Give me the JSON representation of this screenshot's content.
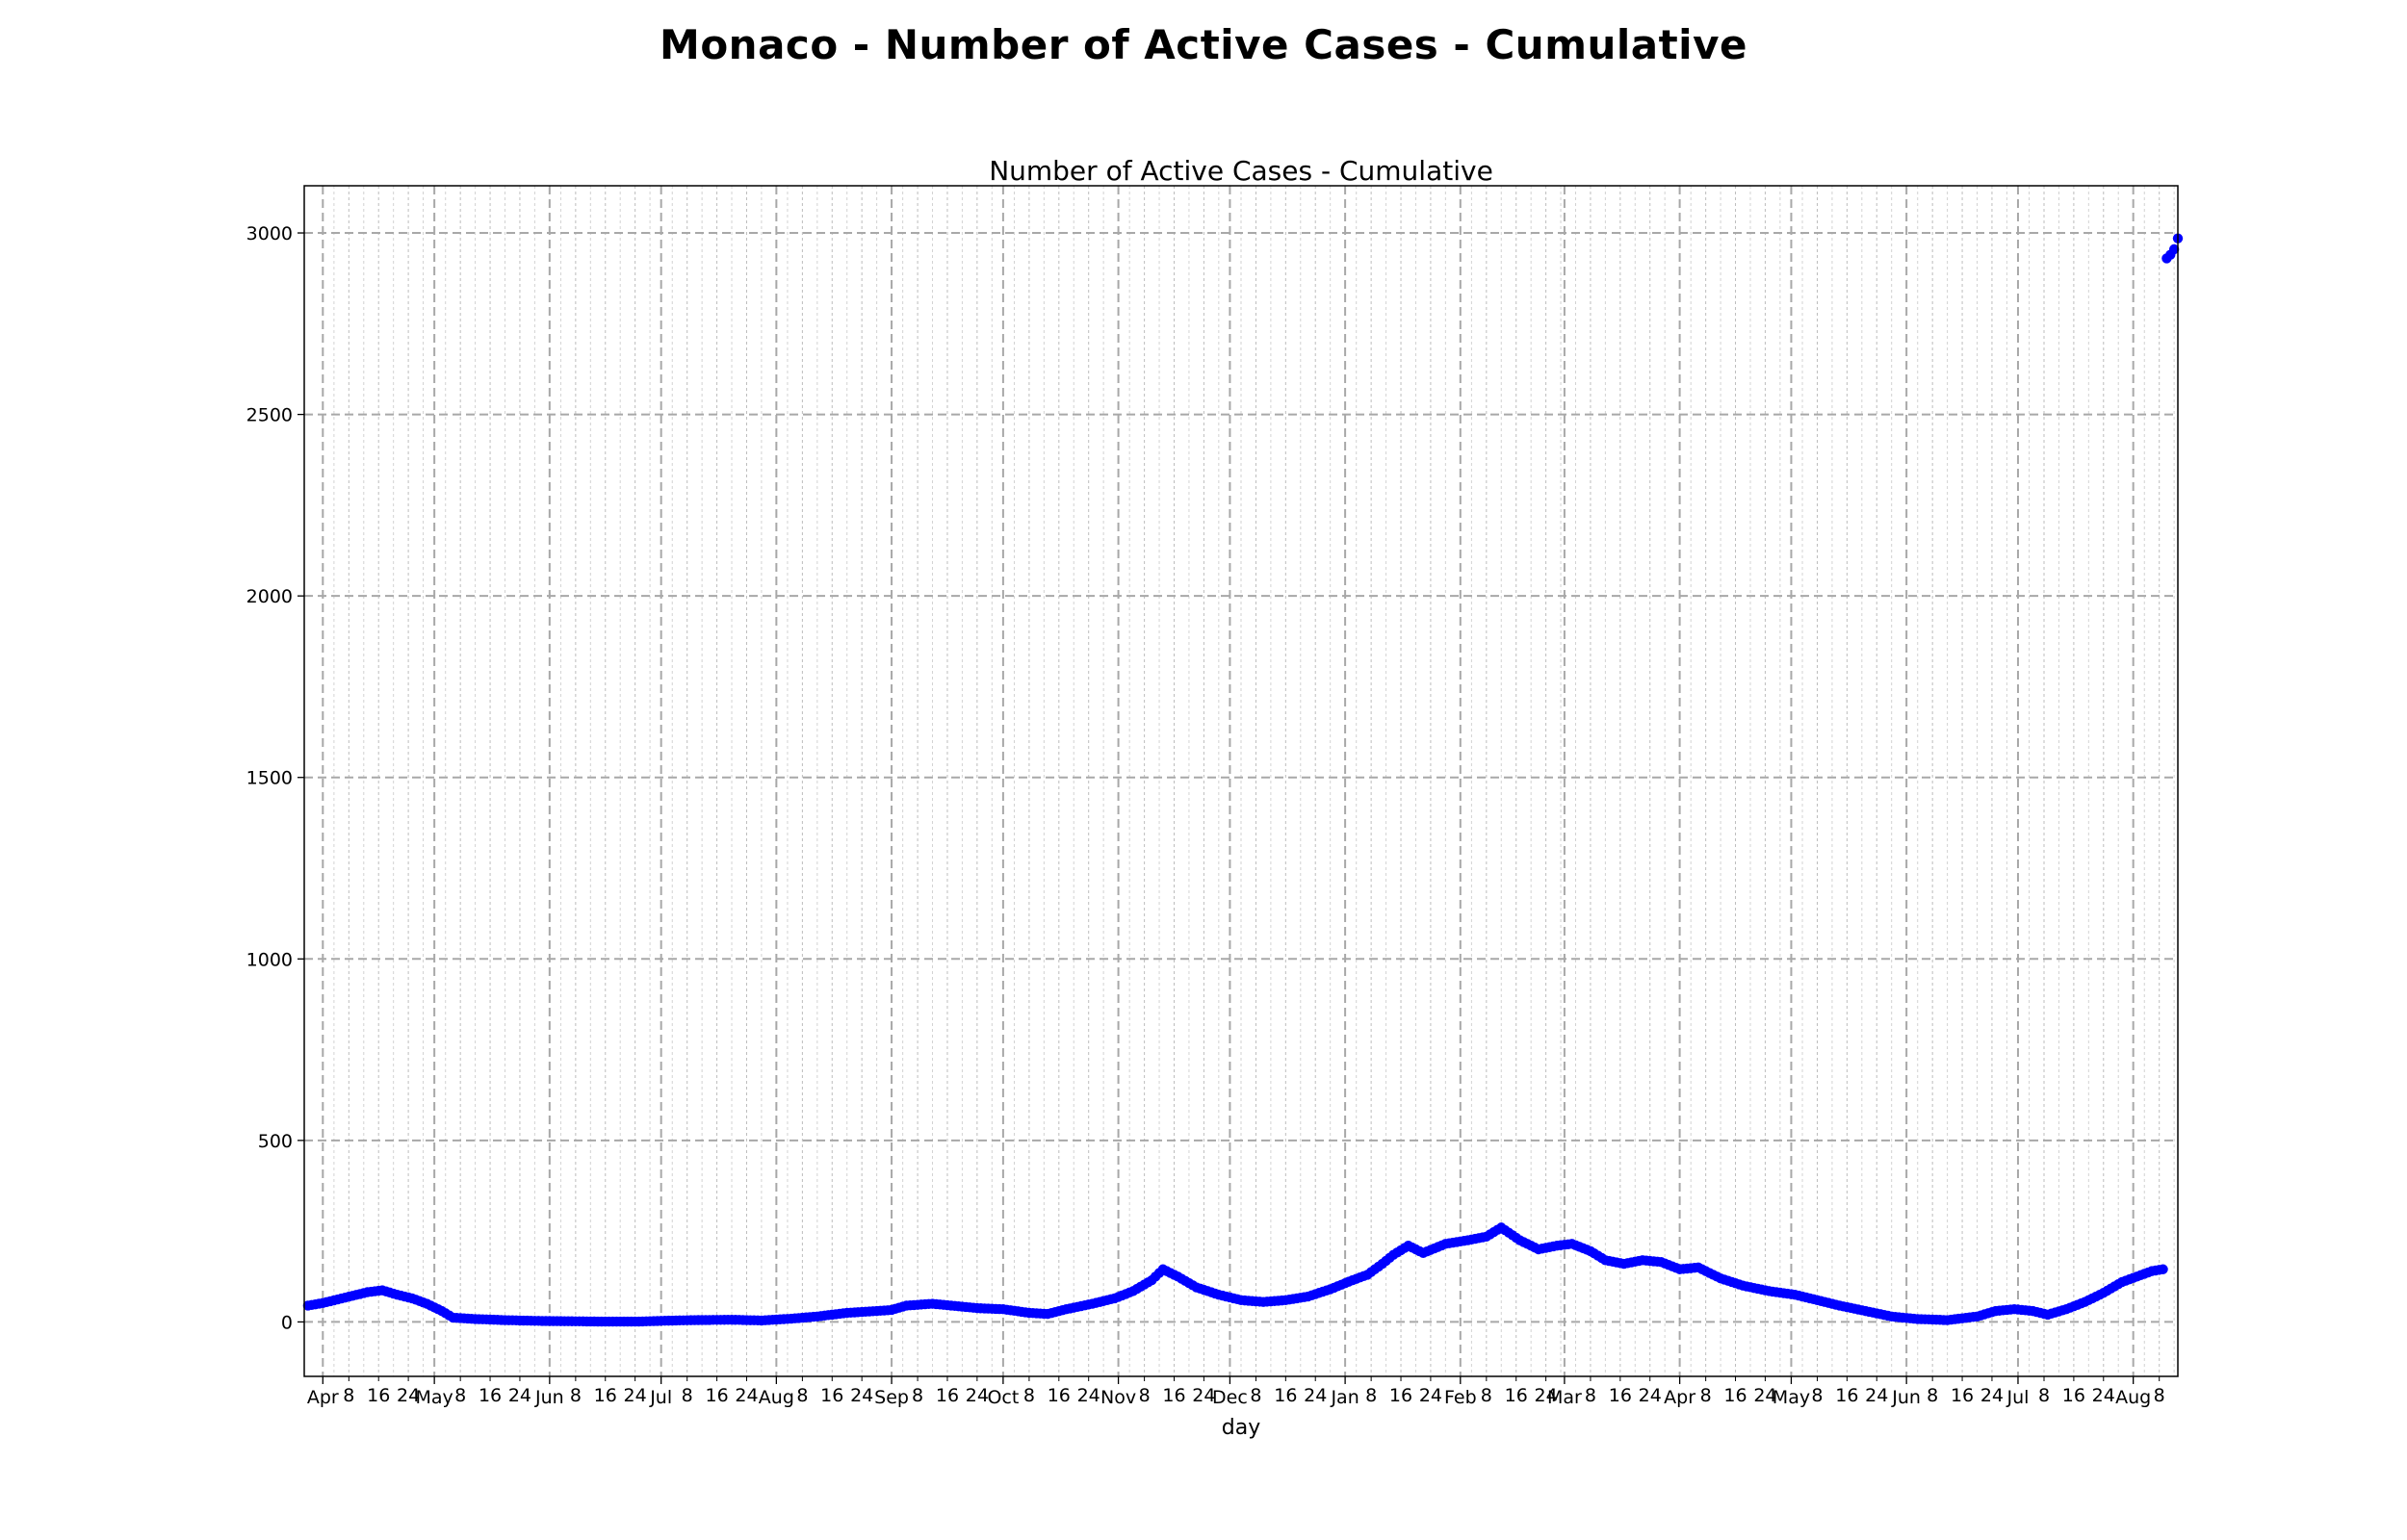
{
  "chart_data": {
    "type": "scatter",
    "suptitle": "Monaco - Number of Active Cases - Cumulative",
    "title": "Number of Active Cases - Cumulative",
    "xlabel": "day",
    "ylabel": "",
    "ylim": [
      -150,
      3130
    ],
    "yticks": [
      0,
      500,
      1000,
      1500,
      2000,
      2500,
      3000
    ],
    "xlim": [
      "2020-03-27",
      "2021-08-13"
    ],
    "grid": true,
    "legend": "none",
    "marker_color": "#0000ff",
    "month_ticks": [
      {
        "date": "2020-04-01",
        "label": "Apr"
      },
      {
        "date": "2020-05-01",
        "label": "May"
      },
      {
        "date": "2020-06-01",
        "label": "Jun"
      },
      {
        "date": "2020-07-01",
        "label": "Jul"
      },
      {
        "date": "2020-08-01",
        "label": "Aug"
      },
      {
        "date": "2020-09-01",
        "label": "Sep"
      },
      {
        "date": "2020-10-01",
        "label": "Oct"
      },
      {
        "date": "2020-11-01",
        "label": "Nov"
      },
      {
        "date": "2020-12-01",
        "label": "Dec"
      },
      {
        "date": "2021-01-01",
        "label": "Jan"
      },
      {
        "date": "2021-02-01",
        "label": "Feb"
      },
      {
        "date": "2021-03-01",
        "label": "Mar"
      },
      {
        "date": "2021-04-01",
        "label": "Apr"
      },
      {
        "date": "2021-05-01",
        "label": "May"
      },
      {
        "date": "2021-06-01",
        "label": "Jun"
      },
      {
        "date": "2021-07-01",
        "label": "Jul"
      },
      {
        "date": "2021-08-01",
        "label": "Aug"
      }
    ],
    "day_tick_labels": [
      "8",
      "16",
      "24"
    ],
    "series": [
      {
        "points": [
          [
            "2020-03-28",
            45
          ],
          [
            "2020-04-01",
            52
          ],
          [
            "2020-04-05",
            62
          ],
          [
            "2020-04-09",
            72
          ],
          [
            "2020-04-13",
            82
          ],
          [
            "2020-04-17",
            87
          ],
          [
            "2020-04-21",
            75
          ],
          [
            "2020-04-25",
            65
          ],
          [
            "2020-04-29",
            50
          ],
          [
            "2020-05-03",
            30
          ],
          [
            "2020-05-06",
            12
          ],
          [
            "2020-05-12",
            8
          ],
          [
            "2020-05-20",
            5
          ],
          [
            "2020-05-28",
            3
          ],
          [
            "2020-06-05",
            2
          ],
          [
            "2020-06-15",
            1
          ],
          [
            "2020-06-25",
            1
          ],
          [
            "2020-07-01",
            3
          ],
          [
            "2020-07-10",
            5
          ],
          [
            "2020-07-20",
            6
          ],
          [
            "2020-07-28",
            4
          ],
          [
            "2020-08-05",
            9
          ],
          [
            "2020-08-12",
            15
          ],
          [
            "2020-08-20",
            25
          ],
          [
            "2020-08-28",
            30
          ],
          [
            "2020-09-01",
            33
          ],
          [
            "2020-09-05",
            45
          ],
          [
            "2020-09-12",
            50
          ],
          [
            "2020-09-17",
            45
          ],
          [
            "2020-09-24",
            38
          ],
          [
            "2020-10-01",
            35
          ],
          [
            "2020-10-08",
            25
          ],
          [
            "2020-10-13",
            22
          ],
          [
            "2020-10-18",
            35
          ],
          [
            "2020-10-25",
            50
          ],
          [
            "2020-10-31",
            65
          ],
          [
            "2020-11-05",
            85
          ],
          [
            "2020-11-10",
            115
          ],
          [
            "2020-11-13",
            145
          ],
          [
            "2020-11-17",
            125
          ],
          [
            "2020-11-22",
            95
          ],
          [
            "2020-11-28",
            75
          ],
          [
            "2020-12-04",
            60
          ],
          [
            "2020-12-10",
            55
          ],
          [
            "2020-12-16",
            60
          ],
          [
            "2020-12-22",
            70
          ],
          [
            "2020-12-28",
            90
          ],
          [
            "2021-01-03",
            115
          ],
          [
            "2021-01-07",
            130
          ],
          [
            "2021-01-11",
            160
          ],
          [
            "2021-01-14",
            185
          ],
          [
            "2021-01-18",
            210
          ],
          [
            "2021-01-22",
            190
          ],
          [
            "2021-01-28",
            215
          ],
          [
            "2021-02-03",
            225
          ],
          [
            "2021-02-08",
            235
          ],
          [
            "2021-02-12",
            260
          ],
          [
            "2021-02-17",
            225
          ],
          [
            "2021-02-22",
            200
          ],
          [
            "2021-02-27",
            210
          ],
          [
            "2021-03-03",
            215
          ],
          [
            "2021-03-08",
            195
          ],
          [
            "2021-03-12",
            170
          ],
          [
            "2021-03-17",
            160
          ],
          [
            "2021-03-22",
            170
          ],
          [
            "2021-03-27",
            165
          ],
          [
            "2021-04-01",
            145
          ],
          [
            "2021-04-06",
            150
          ],
          [
            "2021-04-12",
            120
          ],
          [
            "2021-04-18",
            100
          ],
          [
            "2021-04-25",
            85
          ],
          [
            "2021-05-02",
            75
          ],
          [
            "2021-05-08",
            60
          ],
          [
            "2021-05-14",
            45
          ],
          [
            "2021-05-21",
            30
          ],
          [
            "2021-05-28",
            15
          ],
          [
            "2021-06-04",
            8
          ],
          [
            "2021-06-12",
            5
          ],
          [
            "2021-06-20",
            15
          ],
          [
            "2021-06-25",
            30
          ],
          [
            "2021-06-30",
            35
          ],
          [
            "2021-07-05",
            30
          ],
          [
            "2021-07-09",
            20
          ],
          [
            "2021-07-14",
            35
          ],
          [
            "2021-07-19",
            55
          ],
          [
            "2021-07-24",
            80
          ],
          [
            "2021-07-29",
            110
          ],
          [
            "2021-08-02",
            125
          ],
          [
            "2021-08-06",
            140
          ],
          [
            "2021-08-09",
            145
          ],
          [
            "2021-08-10",
            2930
          ],
          [
            "2021-08-11",
            2940
          ],
          [
            "2021-08-12",
            2955
          ],
          [
            "2021-08-13",
            2985
          ]
        ]
      }
    ]
  }
}
